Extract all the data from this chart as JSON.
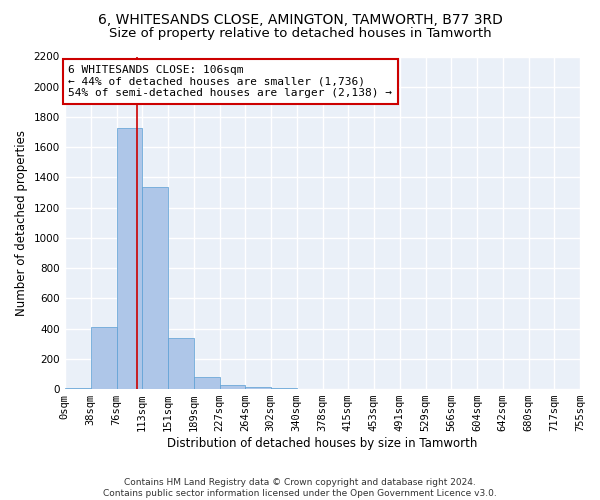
{
  "title": "6, WHITESANDS CLOSE, AMINGTON, TAMWORTH, B77 3RD",
  "subtitle": "Size of property relative to detached houses in Tamworth",
  "xlabel": "Distribution of detached houses by size in Tamworth",
  "ylabel": "Number of detached properties",
  "bin_edges": [
    0,
    38,
    76,
    113,
    151,
    189,
    227,
    264,
    302,
    340,
    378,
    415,
    453,
    491,
    529,
    566,
    604,
    642,
    680,
    717,
    755
  ],
  "bar_heights": [
    10,
    410,
    1730,
    1340,
    340,
    80,
    30,
    15,
    5,
    2,
    1,
    1,
    0,
    0,
    0,
    0,
    0,
    0,
    0,
    0
  ],
  "bar_color": "#aec6e8",
  "bar_edge_color": "#5a9fd4",
  "property_size": 106,
  "red_line_color": "#cc0000",
  "annotation_text": "6 WHITESANDS CLOSE: 106sqm\n← 44% of detached houses are smaller (1,736)\n54% of semi-detached houses are larger (2,138) →",
  "annotation_box_color": "white",
  "annotation_box_edge": "#cc0000",
  "ylim": [
    0,
    2200
  ],
  "yticks": [
    0,
    200,
    400,
    600,
    800,
    1000,
    1200,
    1400,
    1600,
    1800,
    2000,
    2200
  ],
  "background_color": "#eaf0f8",
  "grid_color": "white",
  "footer_text": "Contains HM Land Registry data © Crown copyright and database right 2024.\nContains public sector information licensed under the Open Government Licence v3.0.",
  "title_fontsize": 10,
  "subtitle_fontsize": 9.5,
  "axis_label_fontsize": 8.5,
  "tick_fontsize": 7.5,
  "annotation_fontsize": 8,
  "footer_fontsize": 6.5
}
